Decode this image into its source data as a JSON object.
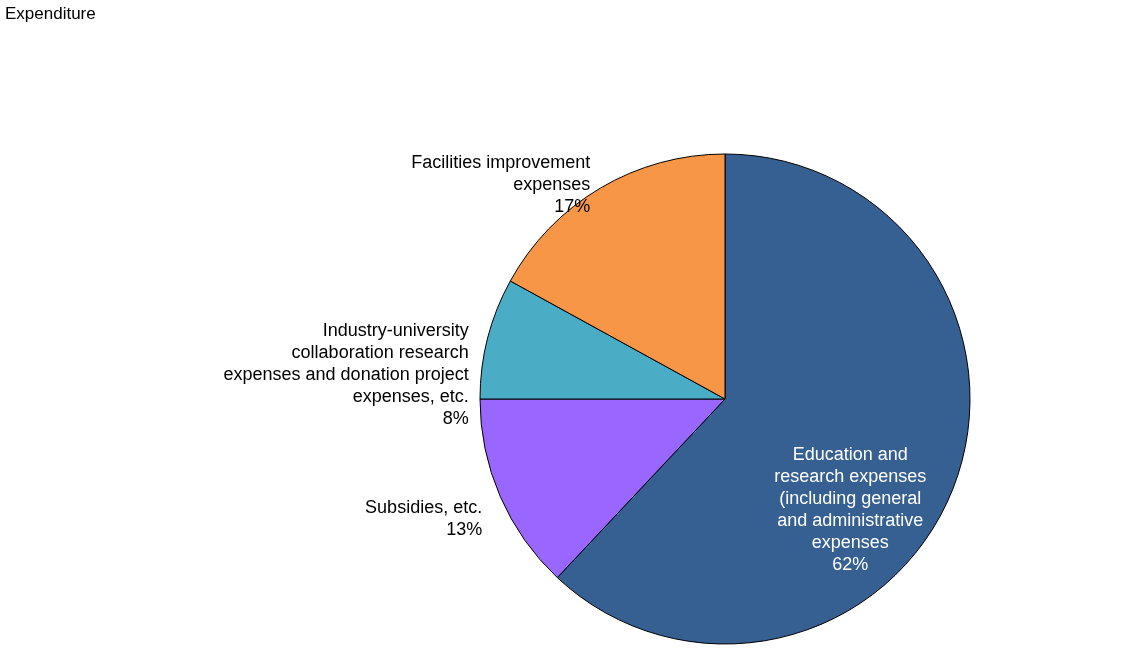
{
  "chart_data": {
    "type": "pie",
    "title": "Expenditure",
    "categories": [
      "Education and research expenses (including general and administrative expenses",
      "Subsidies, etc.",
      "Industry-university collaboration research expenses and donation project expenses, etc.",
      "Facilities improvement expenses"
    ],
    "values": [
      62,
      13,
      8,
      17
    ],
    "value_labels": [
      "62%",
      "13%",
      "8%",
      "17%"
    ],
    "colors": [
      "#376092",
      "#9966ff",
      "#4bacc6",
      "#f79646"
    ],
    "legend": false
  }
}
